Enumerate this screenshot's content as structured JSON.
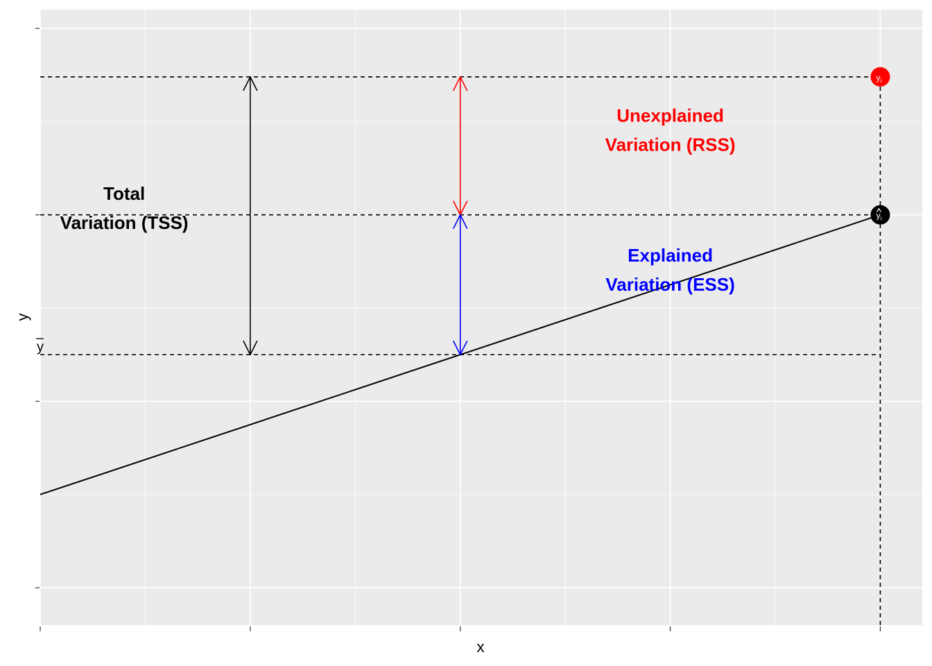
{
  "chart_data": {
    "type": "line",
    "xlabel": "x",
    "ylabel": "y",
    "xlim": [
      0.0,
      4.2
    ],
    "ylim": [
      0.3,
      3.6
    ],
    "x_major_ticks": [
      0,
      1,
      2,
      3,
      4
    ],
    "y_major_ticks": [
      0.5,
      1.5,
      2.5,
      3.5
    ],
    "grid": true,
    "regression_line": {
      "x": [
        0,
        4
      ],
      "y": [
        1.0,
        2.5
      ]
    },
    "y_bar": 1.75,
    "observed_point": {
      "x": 4,
      "y": 3.24,
      "label": "y",
      "label_sub": "i",
      "color": "#FF0000"
    },
    "fitted_point": {
      "x": 4,
      "y": 2.5,
      "label": "y",
      "label_sub": "i",
      "color": "#000000"
    },
    "guide_lines": [
      {
        "x": [
          0,
          4
        ],
        "y": [
          3.24,
          3.24
        ]
      },
      {
        "x": [
          0,
          4
        ],
        "y": [
          2.5,
          2.5
        ]
      },
      {
        "x": [
          0,
          4
        ],
        "y": [
          1.75,
          1.75
        ]
      },
      {
        "x": [
          4,
          4
        ],
        "y": [
          0.3,
          3.24
        ]
      }
    ],
    "arrows": [
      {
        "name": "tss-arrow",
        "x": 1,
        "y_from": 1.75,
        "y_to": 3.24,
        "color": "#000000"
      },
      {
        "name": "rss-arrow",
        "x": 2,
        "y_from": 2.5,
        "y_to": 3.24,
        "color": "#FF0000"
      },
      {
        "name": "ess-arrow",
        "x": 2,
        "y_from": 1.75,
        "y_to": 2.5,
        "color": "#0000FF"
      }
    ],
    "annotations": [
      {
        "name": "tss-label",
        "x": 0.4,
        "y": 2.58,
        "lines": [
          "Total",
          "Variation (TSS)"
        ],
        "color": "#000000"
      },
      {
        "name": "rss-label",
        "x": 3.0,
        "y": 3.0,
        "lines": [
          "Unexplained",
          "Variation (RSS)"
        ],
        "color": "#FF0000"
      },
      {
        "name": "ess-label",
        "x": 3.0,
        "y": 2.25,
        "lines": [
          "Explained",
          "Variation (ESS)"
        ],
        "color": "#0000FF"
      }
    ],
    "y_bar_label": {
      "x": 0,
      "y": 1.75,
      "text": "y"
    },
    "colors": {
      "panel": "#EBEBEB",
      "grid": "#FFFFFF",
      "tss": "#000000",
      "rss": "#FF0000",
      "ess": "#0000FF"
    }
  }
}
